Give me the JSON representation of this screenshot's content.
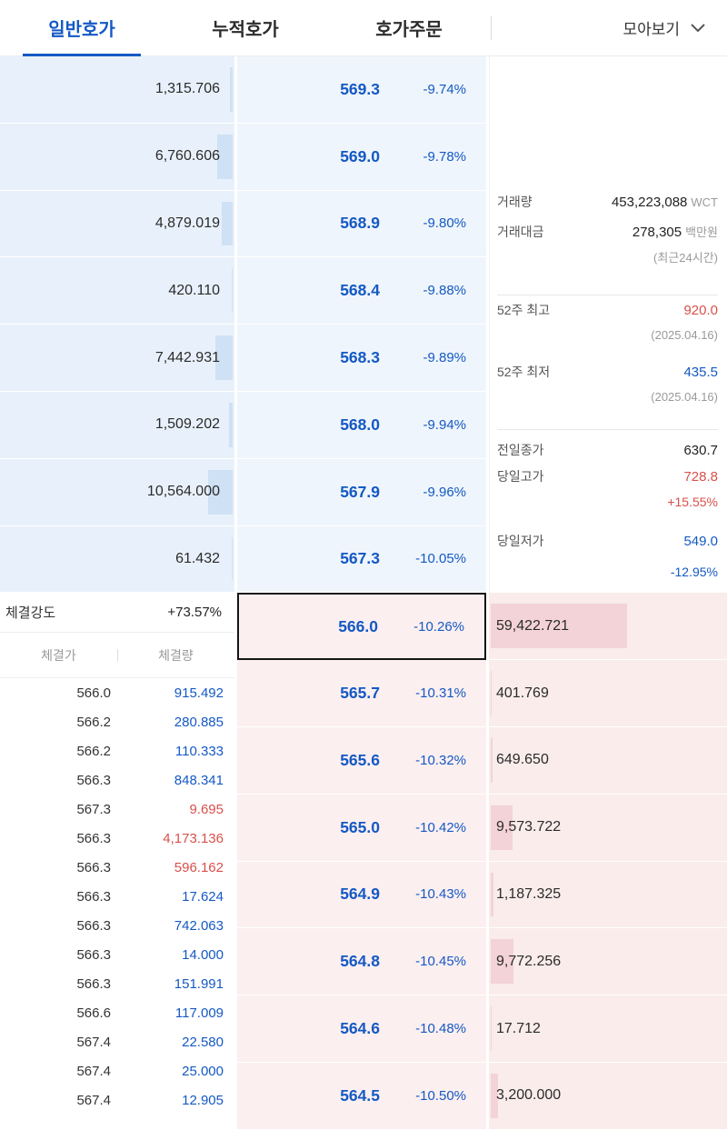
{
  "tabs": {
    "items": [
      {
        "label": "일반호가",
        "active": true
      },
      {
        "label": "누적호가",
        "active": false
      },
      {
        "label": "호가주문",
        "active": false
      }
    ],
    "collapse_label": "모아보기"
  },
  "asks": [
    {
      "qty": "1,315.706",
      "price": "569.3",
      "pct": "-9.74%"
    },
    {
      "qty": "6,760.606",
      "price": "569.0",
      "pct": "-9.78%"
    },
    {
      "qty": "4,879.019",
      "price": "568.9",
      "pct": "-9.80%"
    },
    {
      "qty": "420.110",
      "price": "568.4",
      "pct": "-9.88%"
    },
    {
      "qty": "7,442.931",
      "price": "568.3",
      "pct": "-9.89%"
    },
    {
      "qty": "1,509.202",
      "price": "568.0",
      "pct": "-9.94%"
    },
    {
      "qty": "10,564.000",
      "price": "567.9",
      "pct": "-9.96%"
    },
    {
      "qty": "61.432",
      "price": "567.3",
      "pct": "-10.05%"
    }
  ],
  "bids": [
    {
      "qty": "59,422.721",
      "price": "566.0",
      "pct": "-10.26%",
      "current": true
    },
    {
      "qty": "401.769",
      "price": "565.7",
      "pct": "-10.31%"
    },
    {
      "qty": "649.650",
      "price": "565.6",
      "pct": "-10.32%"
    },
    {
      "qty": "9,573.722",
      "price": "565.0",
      "pct": "-10.42%"
    },
    {
      "qty": "1,187.325",
      "price": "564.9",
      "pct": "-10.43%"
    },
    {
      "qty": "9,772.256",
      "price": "564.8",
      "pct": "-10.45%"
    },
    {
      "qty": "17.712",
      "price": "564.6",
      "pct": "-10.48%"
    },
    {
      "qty": "3,200.000",
      "price": "564.5",
      "pct": "-10.50%"
    }
  ],
  "info": {
    "volume_label": "거래량",
    "volume_value": "453,223,088",
    "volume_unit": "WCT",
    "value_label": "거래대금",
    "value_value": "278,305",
    "value_unit": "백만원",
    "value_note": "(최근24시간)",
    "high52_label": "52주 최고",
    "high52_value": "920.0",
    "high52_date": "(2025.04.16)",
    "low52_label": "52주 최저",
    "low52_value": "435.5",
    "low52_date": "(2025.04.16)",
    "prev_close_label": "전일종가",
    "prev_close_value": "630.7",
    "day_high_label": "당일고가",
    "day_high_value": "728.8",
    "day_high_pct": "+15.55%",
    "day_low_label": "당일저가",
    "day_low_value": "549.0",
    "day_low_pct": "-12.95%"
  },
  "strength": {
    "label": "체결강도",
    "value": "+73.57%"
  },
  "trades": {
    "headers": [
      "체결가",
      "체결량"
    ],
    "rows": [
      {
        "price": "566.0",
        "qty": "915.492",
        "dir": "down"
      },
      {
        "price": "566.2",
        "qty": "280.885",
        "dir": "down"
      },
      {
        "price": "566.2",
        "qty": "110.333",
        "dir": "down"
      },
      {
        "price": "566.3",
        "qty": "848.341",
        "dir": "down"
      },
      {
        "price": "567.3",
        "qty": "9.695",
        "dir": "up"
      },
      {
        "price": "566.3",
        "qty": "4,173.136",
        "dir": "up"
      },
      {
        "price": "566.3",
        "qty": "596.162",
        "dir": "up"
      },
      {
        "price": "566.3",
        "qty": "17.624",
        "dir": "down"
      },
      {
        "price": "566.3",
        "qty": "742.063",
        "dir": "down"
      },
      {
        "price": "566.3",
        "qty": "14.000",
        "dir": "down"
      },
      {
        "price": "566.3",
        "qty": "151.991",
        "dir": "down"
      },
      {
        "price": "566.6",
        "qty": "117.009",
        "dir": "down"
      },
      {
        "price": "567.4",
        "qty": "22.580",
        "dir": "down"
      },
      {
        "price": "567.4",
        "qty": "25.000",
        "dir": "down"
      },
      {
        "price": "567.4",
        "qty": "12.905",
        "dir": "down"
      }
    ]
  },
  "colors": {
    "blue": "#1459c4",
    "red": "#d9504b",
    "ask_bg": "#e8f1fb",
    "ask_price_bg": "#eff5fc",
    "ask_bar": "#cfe1f4",
    "bid_bg": "#f9eceb",
    "bid_price_bg": "#fceff0",
    "bid_bar": "#f3d3d7",
    "current_border": "#151515"
  }
}
